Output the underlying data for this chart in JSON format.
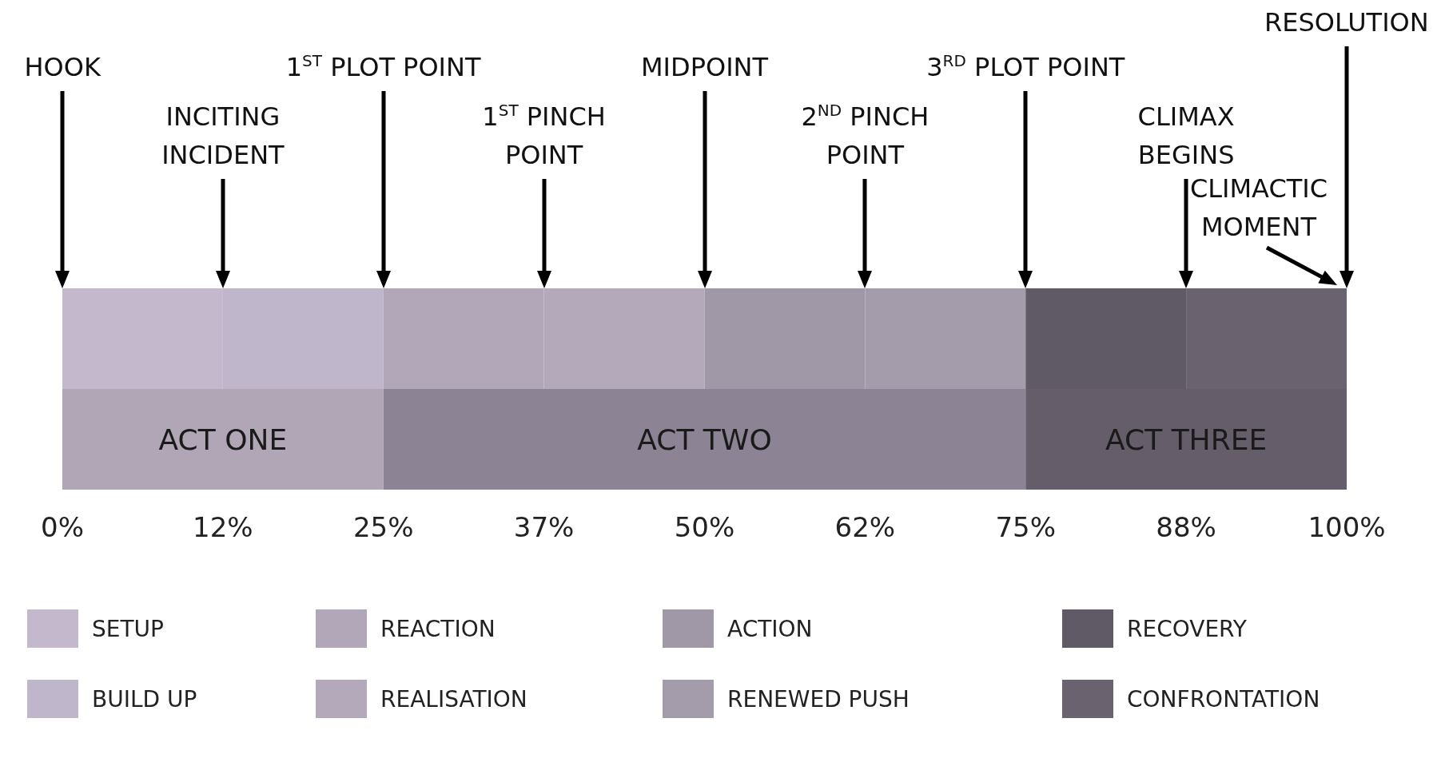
{
  "chart_data": {
    "type": "bar",
    "orientation": "horizontal",
    "stacked": true,
    "categories": [
      null,
      null
    ],
    "series": [
      {
        "name": "SETUP",
        "color": "#c4b8cc",
        "values": [
          12.5,
          null
        ]
      },
      {
        "name": "BUILD UP",
        "color": "#c0b6cb",
        "values": [
          12.5,
          null
        ]
      },
      {
        "name": "REACTION",
        "color": "#b1a7b8",
        "values": [
          12.5,
          null
        ]
      },
      {
        "name": "REALISATION",
        "color": "#b3a9ba",
        "values": [
          12.5,
          null
        ]
      },
      {
        "name": "ACTION",
        "color": "#a097a7",
        "values": [
          12.5,
          null
        ]
      },
      {
        "name": "RENEWED PUSH",
        "color": "#a49bab",
        "values": [
          12.5,
          null
        ]
      },
      {
        "name": "RECOVERY",
        "color": "#605966",
        "values": [
          12.5,
          null
        ]
      },
      {
        "name": "CONFRONTATION",
        "color": "#6a626f",
        "values": [
          12.5,
          null
        ]
      },
      {
        "name": "ACT ONE",
        "color": "#b0a6b6",
        "values": [
          null,
          25
        ]
      },
      {
        "name": "ACT TWO",
        "color": "#8c8394",
        "values": [
          null,
          50
        ]
      },
      {
        "name": "ACT THREE",
        "color": "#655d6a",
        "values": [
          null,
          25
        ]
      }
    ],
    "xlim": [
      0,
      100
    ],
    "xticks": [
      {
        "value": 0,
        "label": "0%"
      },
      {
        "value": 12.5,
        "label": "12%"
      },
      {
        "value": 25,
        "label": "25%"
      },
      {
        "value": 37.5,
        "label": "37%"
      },
      {
        "value": 50,
        "label": "50%"
      },
      {
        "value": 62.5,
        "label": "62%"
      },
      {
        "value": 75,
        "label": "75%"
      },
      {
        "value": 87.5,
        "label": "88%"
      },
      {
        "value": 100,
        "label": "100%"
      }
    ],
    "annotations": [
      "HOOK",
      "INCITING INCIDENT",
      "1$^{ST}$ PLOT POINT",
      "1$^{ST}$ PINCH POINT",
      "MIDPOINT",
      "2$^{ND}$ PINCH POINT",
      "3$^{RD}$ PLOT POINT",
      "CLIMAX BEGINS",
      "CLIMACTIC MOMENT",
      "RESOLUTION"
    ],
    "legend": "bottom",
    "grid": false
  }
}
